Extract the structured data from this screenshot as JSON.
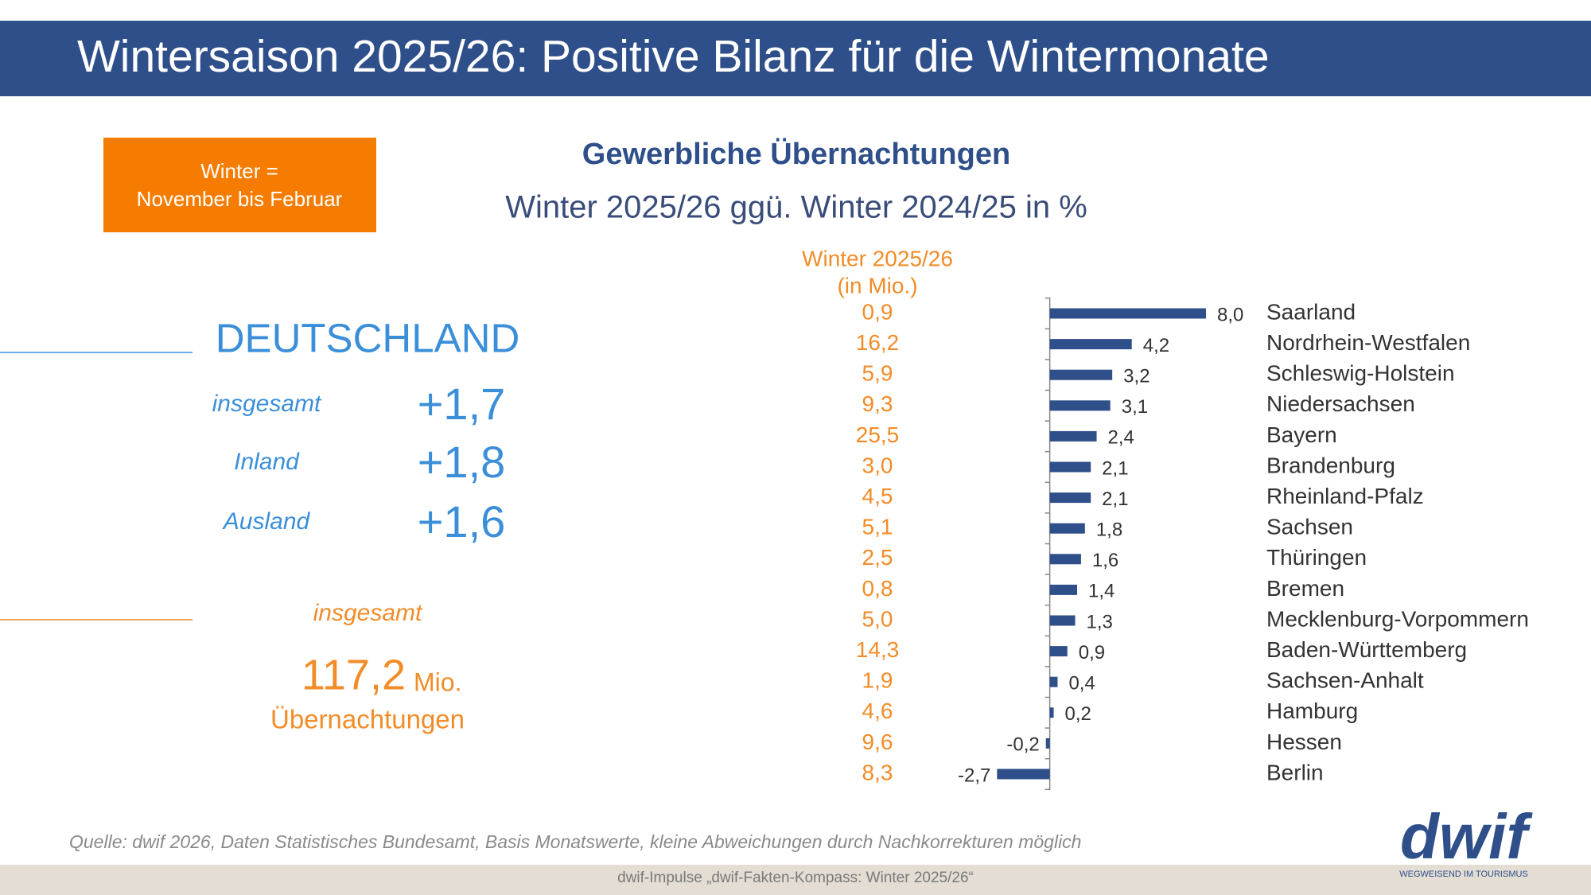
{
  "header": {
    "title": "Wintersaison 2025/26: Positive Bilanz für die Wintermonate"
  },
  "info_box": {
    "lines": [
      "Winter =",
      "November bis Februar"
    ]
  },
  "summary": {
    "region": "DEUTSCHLAND",
    "rows": [
      {
        "label": "insgesamt",
        "value": "+1,7"
      },
      {
        "label": "Inland",
        "value": "+1,8"
      },
      {
        "label": "Ausland",
        "value": "+1,6"
      }
    ],
    "total_label": "insgesamt",
    "total_value": "117,2",
    "total_unit": "Mio.",
    "total_caption": "Übernachtungen"
  },
  "chart_data": {
    "type": "hbar",
    "title": "Gewerbliche Übernachtungen",
    "subtitle": "Winter 2025/26 ggü. Winter 2024/25 in %",
    "categories": [
      "Saarland",
      "Nordrhein-Westfalen",
      "Schleswig-Holstein",
      "Niedersachsen",
      "Bayern",
      "Brandenburg",
      "Rheinland-Pfalz",
      "Sachsen",
      "Thüringen",
      "Bremen",
      "Mecklenburg-Vorpommern",
      "Baden-Württemberg",
      "Sachsen-Anhalt",
      "Hamburg",
      "Hessen",
      "Berlin"
    ],
    "values": [
      8.0,
      4.2,
      3.2,
      3.1,
      2.4,
      2.1,
      2.1,
      1.8,
      1.6,
      1.4,
      1.3,
      0.9,
      0.4,
      0.2,
      -0.2,
      -2.7
    ],
    "value_labels": [
      "8,0",
      "4,2",
      "3,2",
      "3,1",
      "2,4",
      "2,1",
      "2,1",
      "1,8",
      "1,6",
      "1,4",
      "1,3",
      "0,9",
      "0,4",
      "0,2",
      "-0,2",
      "-2,7"
    ],
    "color": "#2f4f8a",
    "xlim": [
      -3,
      8
    ],
    "side_column": {
      "title": "Winter 2025/26",
      "subtitle": "(in Mio.)",
      "values": [
        0.9,
        16.2,
        5.9,
        9.3,
        25.5,
        3.0,
        4.5,
        5.1,
        2.5,
        0.8,
        5.0,
        14.3,
        1.9,
        4.6,
        9.6,
        8.3
      ],
      "value_labels": [
        "0,9",
        "16,2",
        "5,9",
        "9,3",
        "25,5",
        "3,0",
        "4,5",
        "5,1",
        "2,5",
        "0,8",
        "5,0",
        "14,3",
        "1,9",
        "4,6",
        "9,6",
        "8,3"
      ],
      "color": "#f28c28"
    }
  },
  "source": "Quelle: dwif 2026, Daten Statistisches Bundesamt, Basis Monatswerte, kleine Abweichungen durch Nachkorrekturen möglich",
  "footer": "dwif-Impulse „dwif-Fakten-Kompass: Winter 2025/26“",
  "logo": {
    "name": "dwif",
    "tagline": "WEGWEISEND IM TOURISMUS"
  }
}
